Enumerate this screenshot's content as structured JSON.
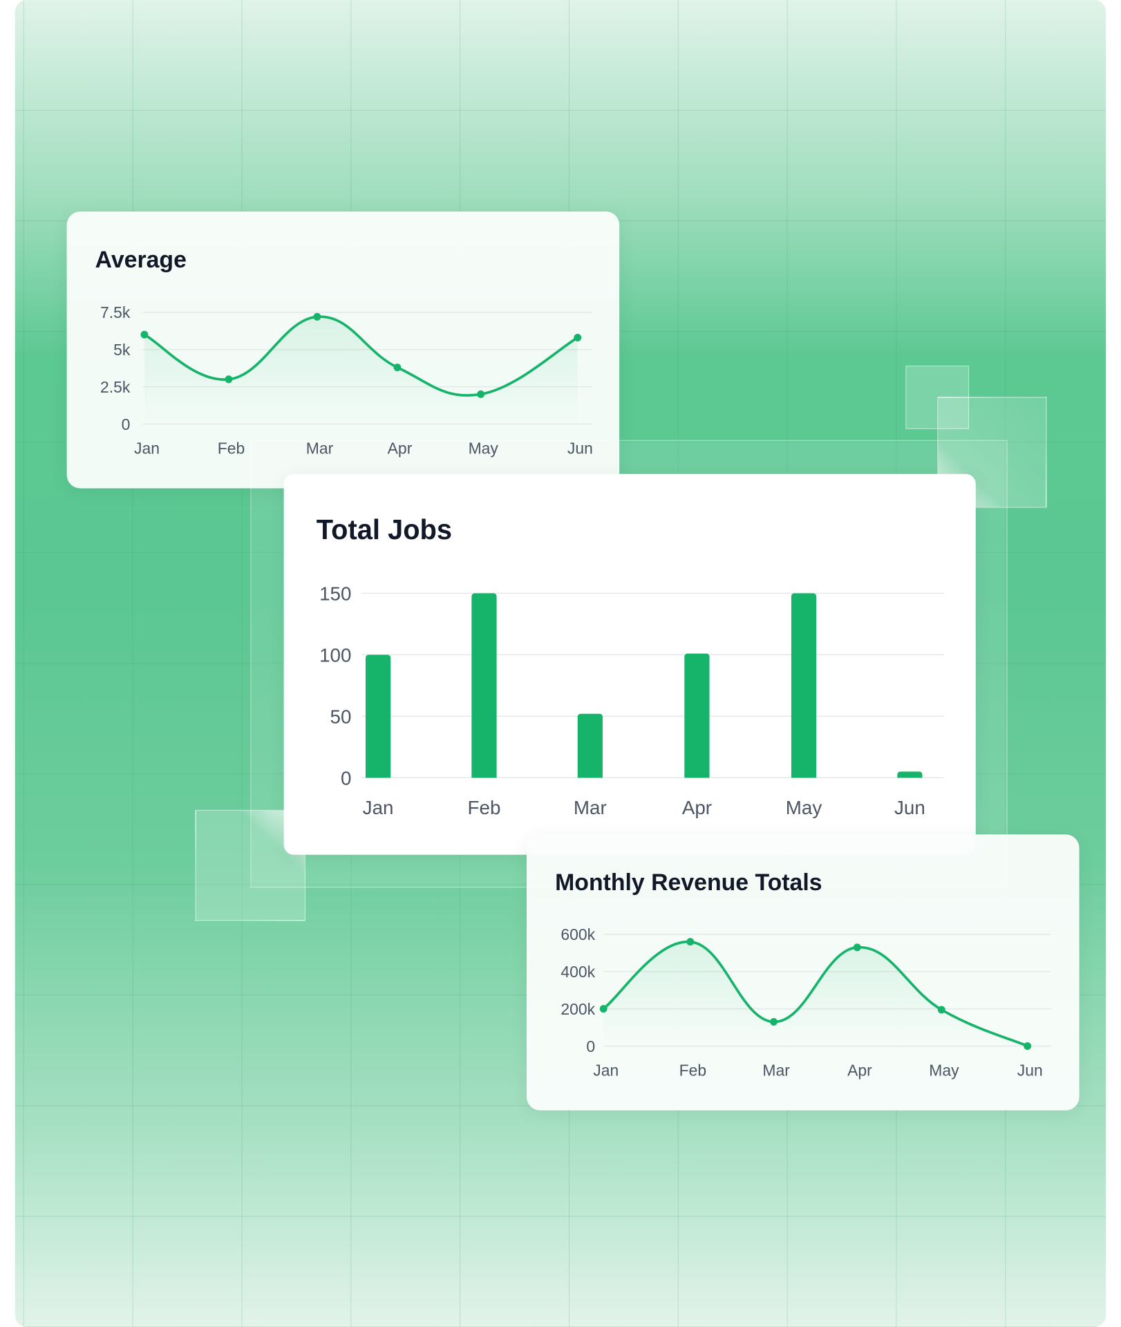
{
  "colors": {
    "accent": "#16b46a",
    "grid": "#e5e7eb",
    "text": "#111827",
    "axis_text": "#4b5563"
  },
  "chart_data": [
    {
      "type": "line",
      "title": "Average",
      "categories": [
        "Jan",
        "Feb",
        "Mar",
        "Apr",
        "May",
        "Jun"
      ],
      "values": [
        6000,
        3000,
        7200,
        3800,
        2000,
        5800
      ],
      "yticks": [
        "0",
        "2.5k",
        "5k",
        "7.5k"
      ],
      "ytick_values": [
        0,
        2500,
        5000,
        7500
      ],
      "ylim": [
        0,
        7500
      ],
      "grid": true,
      "smooth": true,
      "area_fill": true
    },
    {
      "type": "bar",
      "title": "Total Jobs",
      "categories": [
        "Jan",
        "Feb",
        "Mar",
        "Apr",
        "May",
        "Jun"
      ],
      "values": [
        100,
        150,
        52,
        101,
        150,
        5
      ],
      "yticks": [
        "0",
        "50",
        "100",
        "150"
      ],
      "ytick_values": [
        0,
        50,
        100,
        150
      ],
      "ylim": [
        0,
        150
      ],
      "grid": true
    },
    {
      "type": "line",
      "title": "Monthly Revenue Totals",
      "categories": [
        "Jan",
        "Feb",
        "Mar",
        "Apr",
        "May",
        "Jun"
      ],
      "values": [
        200000,
        560000,
        130000,
        530000,
        195000,
        0
      ],
      "yticks": [
        "0",
        "200k",
        "400k",
        "600k"
      ],
      "ytick_values": [
        0,
        200000,
        400000,
        600000
      ],
      "ylim": [
        0,
        600000
      ],
      "grid": true,
      "smooth": true,
      "area_fill": true
    }
  ]
}
